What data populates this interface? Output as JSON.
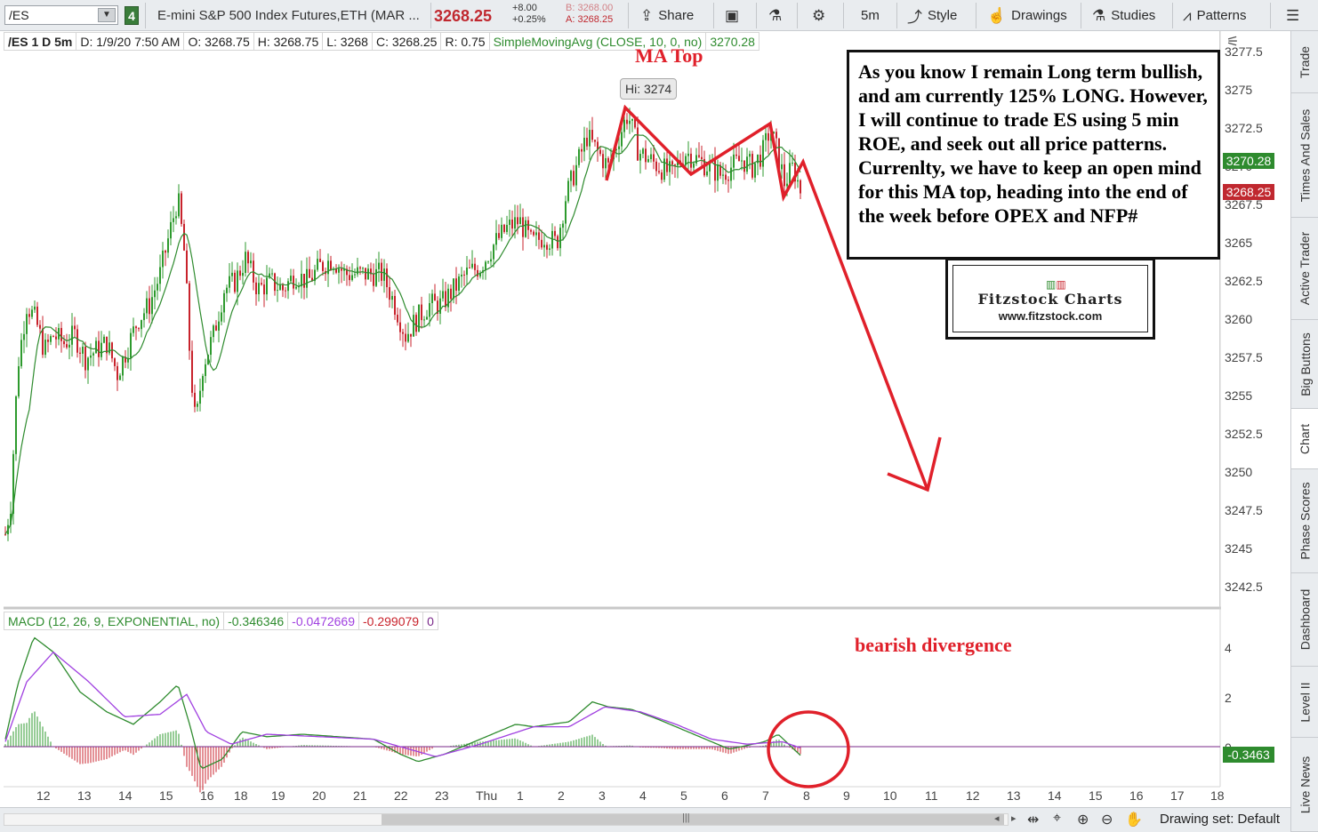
{
  "toolbar": {
    "symbol": "/ES",
    "link_badge": "4",
    "description": "E-mini S&P 500 Index Futures,ETH (MAR ...",
    "last_price": "3268.25",
    "change": "+8.00",
    "change_pct": "+0.25%",
    "bid": "B: 3268.00",
    "ask": "A: 3268.25",
    "share_label": "Share",
    "timeframe_label": "5m",
    "style_label": "Style",
    "drawings_label": "Drawings",
    "studies_label": "Studies",
    "patterns_label": "Patterns"
  },
  "info_bar": {
    "symbol_period": "/ES 1 D 5m",
    "date": "D: 1/9/20 7:50 AM",
    "open": "O: 3268.75",
    "high": "H: 3268.75",
    "low": "L: 3268",
    "close": "C: 3268.25",
    "range": "R: 0.75",
    "sma_label": "SimpleMovingAvg (CLOSE, 10, 0, no)",
    "sma_value": "3270.28"
  },
  "macd_bar": {
    "label": "MACD (12, 26, 9, EXPONENTIAL, no)",
    "value": "-0.346346",
    "avg": "-0.0472669",
    "diff": "-0.299079",
    "zero": "0"
  },
  "price_axis": {
    "labels": [
      "3277.5",
      "3275",
      "3272.5",
      "3270",
      "3267.5",
      "3265",
      "3262.5",
      "3260",
      "3257.5",
      "3255",
      "3252.5",
      "3250",
      "3247.5",
      "3245",
      "3242.5"
    ],
    "sma_tag": "3270.28",
    "price_tag": "3268.25",
    "macd_labels": [
      "4",
      "2",
      "0"
    ],
    "macd_tag": "-0.3463"
  },
  "time_axis": [
    "12",
    "13",
    "14",
    "15",
    "16",
    "18",
    "19",
    "20",
    "21",
    "22",
    "23",
    "Thu",
    "1",
    "2",
    "3",
    "4",
    "5",
    "6",
    "7",
    "8",
    "9",
    "10",
    "11",
    "12",
    "13",
    "14",
    "15",
    "16",
    "17",
    "18"
  ],
  "annotations": {
    "ma_top": "MA Top",
    "hi_label": "Hi: 3274",
    "bearish_divergence": "bearish divergence",
    "note": "As you know I remain Long term bullish, and am currently 125% LONG.   However, I will continue to trade ES using 5 min ROE, and seek out all price patterns.  Currenlty, we have to keep an open mind for this MA top, heading into the end of the week before OPEX and NFP#",
    "logo_title": "Fitzstock Charts",
    "logo_url": "www.fitzstock.com"
  },
  "right_tabs": [
    "Trade",
    "Times And Sales",
    "Active Trader",
    "Big Buttons",
    "Chart",
    "Phase Scores",
    "Dashboard",
    "Level II",
    "Live News"
  ],
  "active_tab": "Chart",
  "bottom_bar": {
    "drawing_set": "Drawing set: Default"
  },
  "colors": {
    "up_candle": "#2e9a2e",
    "down_candle": "#c8232c",
    "sma_line": "#2e8b2e",
    "macd_line": "#2e8b2e",
    "signal_line": "#a040e0",
    "annotation_red": "#e0202a"
  }
}
